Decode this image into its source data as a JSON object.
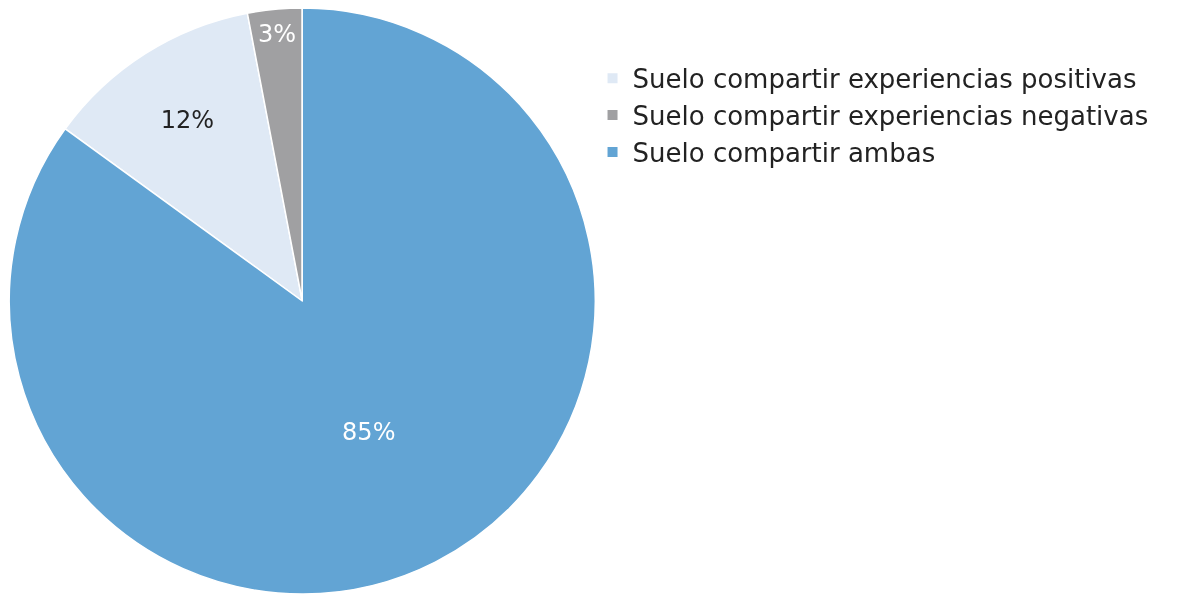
{
  "chart_data": {
    "type": "pie",
    "categories": [
      "Suelo compartir experiencias positivas",
      "Suelo compartir experiencias negativas",
      "Suelo compartir ambas"
    ],
    "values": [
      12,
      3,
      85
    ],
    "colors": [
      "#dfe9f5",
      "#a0a0a2",
      "#62a4d4"
    ],
    "value_labels": [
      "12%",
      "3%",
      "85%"
    ],
    "legend": "top right"
  }
}
